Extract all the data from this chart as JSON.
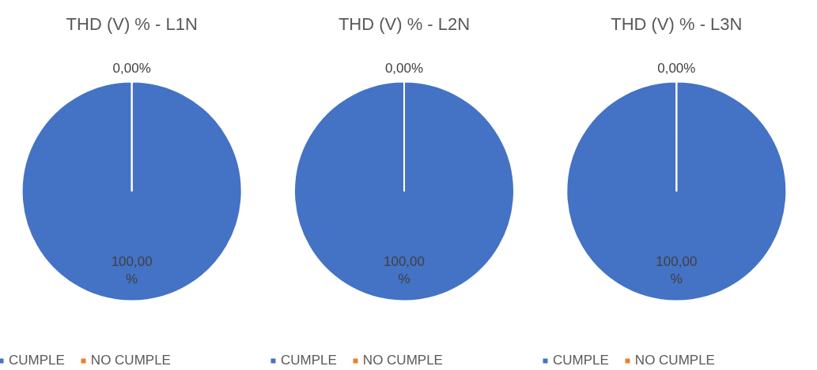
{
  "chart_data": [
    {
      "type": "pie",
      "title": "THD (V) % - L1N",
      "categories": [
        "CUMPLE",
        "NO CUMPLE"
      ],
      "values": [
        100,
        0
      ],
      "colors": [
        "#4472c4",
        "#ed7d31"
      ],
      "value_labels": [
        "100,00%",
        "0,00%"
      ],
      "legend": "bottom"
    },
    {
      "type": "pie",
      "title": "THD (V) % - L2N",
      "categories": [
        "CUMPLE",
        "NO CUMPLE"
      ],
      "values": [
        100,
        0
      ],
      "colors": [
        "#4472c4",
        "#ed7d31"
      ],
      "value_labels": [
        "100,00%",
        "0,00%"
      ],
      "legend": "bottom"
    },
    {
      "type": "pie",
      "title": "THD (V) % - L3N",
      "categories": [
        "CUMPLE",
        "NO CUMPLE"
      ],
      "values": [
        100,
        0
      ],
      "colors": [
        "#4472c4",
        "#ed7d31"
      ],
      "value_labels": [
        "100,00%",
        "0,00%"
      ],
      "legend": "bottom"
    }
  ]
}
